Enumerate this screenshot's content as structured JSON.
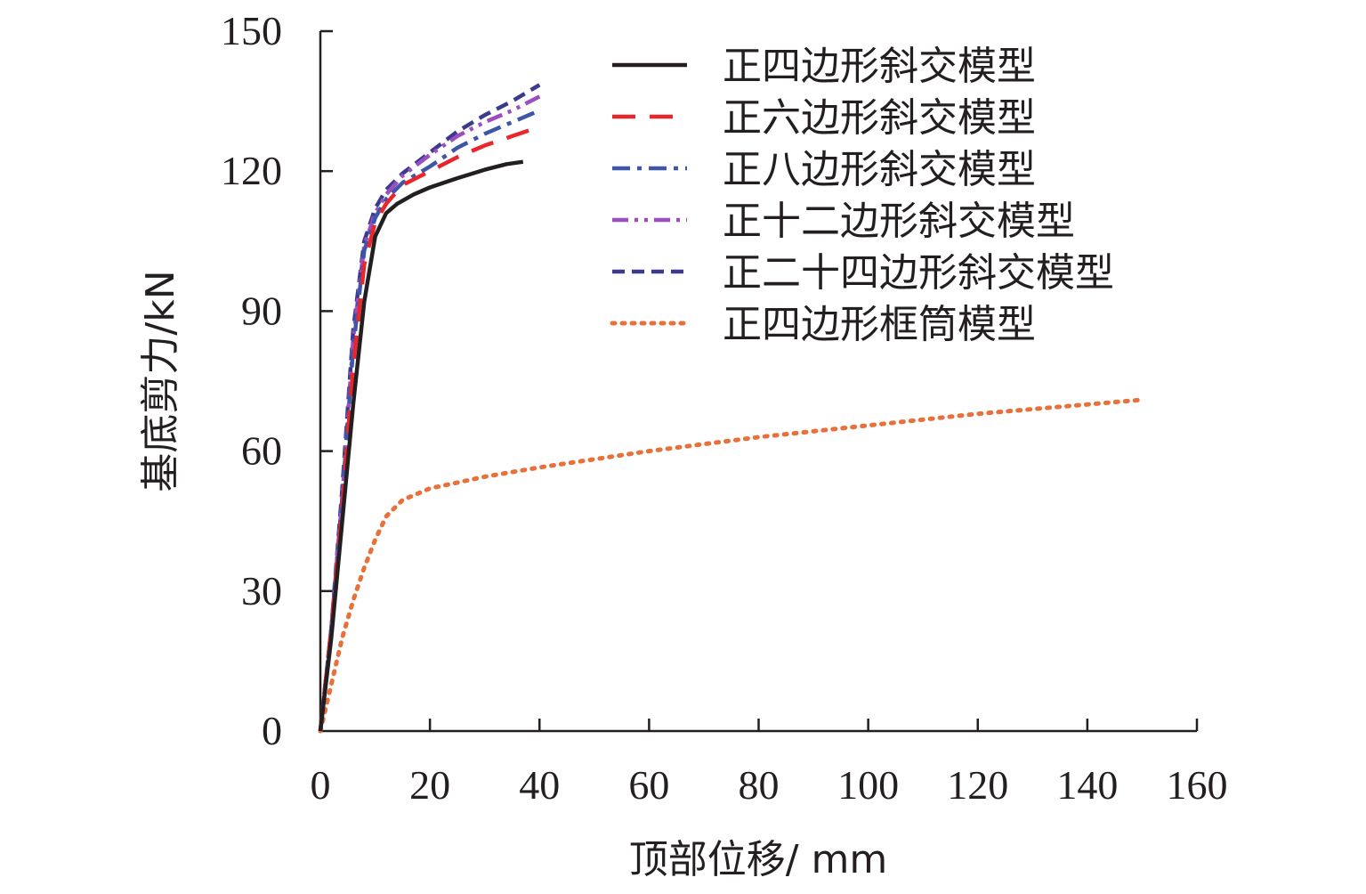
{
  "chart_data": {
    "type": "line",
    "xlabel": "顶部位移/ mm",
    "ylabel": "基底剪力/kN",
    "xlim": [
      0,
      160
    ],
    "ylim": [
      0,
      150
    ],
    "x_ticks": [
      0,
      20,
      40,
      60,
      80,
      100,
      120,
      140,
      160
    ],
    "y_ticks": [
      0,
      30,
      60,
      90,
      120,
      150
    ],
    "grid": false,
    "legend_position": "top-right",
    "series": [
      {
        "name": "正四边形斜交模型",
        "color": "#231f20",
        "dash": "solid",
        "points": [
          [
            0,
            0
          ],
          [
            2,
            20
          ],
          [
            4,
            45
          ],
          [
            6,
            70
          ],
          [
            8,
            92
          ],
          [
            10,
            106
          ],
          [
            12,
            111
          ],
          [
            14,
            113
          ],
          [
            17,
            115
          ],
          [
            20,
            116.5
          ],
          [
            25,
            118.5
          ],
          [
            30,
            120.3
          ],
          [
            34,
            121.5
          ],
          [
            37,
            122
          ]
        ]
      },
      {
        "name": "正六边形斜交模型",
        "color": "#e8262c",
        "dash": "long-dash",
        "points": [
          [
            0,
            0
          ],
          [
            2,
            22
          ],
          [
            4,
            48
          ],
          [
            6,
            78
          ],
          [
            8,
            100
          ],
          [
            10,
            109
          ],
          [
            12,
            113
          ],
          [
            15,
            117
          ],
          [
            20,
            120
          ],
          [
            25,
            123
          ],
          [
            30,
            125.5
          ],
          [
            35,
            127.5
          ],
          [
            40,
            129.5
          ]
        ]
      },
      {
        "name": "正八边形斜交模型",
        "color": "#3d56a8",
        "dash": "dash-dot",
        "points": [
          [
            0,
            0
          ],
          [
            2,
            22
          ],
          [
            4,
            50
          ],
          [
            6,
            82
          ],
          [
            8,
            103
          ],
          [
            10,
            110
          ],
          [
            12,
            114
          ],
          [
            15,
            117.5
          ],
          [
            20,
            121
          ],
          [
            25,
            125
          ],
          [
            30,
            128
          ],
          [
            35,
            130.5
          ],
          [
            40,
            133
          ]
        ]
      },
      {
        "name": "正十二边形斜交模型",
        "color": "#9b4fbf",
        "dash": "dash-dot-dot",
        "points": [
          [
            0,
            0
          ],
          [
            2,
            22
          ],
          [
            4,
            50
          ],
          [
            6,
            84
          ],
          [
            8,
            104
          ],
          [
            10,
            111
          ],
          [
            12,
            115
          ],
          [
            15,
            119
          ],
          [
            20,
            123.5
          ],
          [
            25,
            127.5
          ],
          [
            30,
            130.5
          ],
          [
            35,
            133
          ],
          [
            40,
            136
          ]
        ]
      },
      {
        "name": "正二十四边形斜交模型",
        "color": "#3c3a8f",
        "dash": "short-dash",
        "points": [
          [
            0,
            0
          ],
          [
            2,
            22
          ],
          [
            4,
            52
          ],
          [
            6,
            86
          ],
          [
            8,
            105
          ],
          [
            10,
            112
          ],
          [
            12,
            116
          ],
          [
            15,
            119.5
          ],
          [
            20,
            124
          ],
          [
            25,
            128.5
          ],
          [
            30,
            132
          ],
          [
            35,
            135
          ],
          [
            40,
            138.5
          ]
        ]
      },
      {
        "name": "正四边形框筒模型",
        "color": "#e8703a",
        "dash": "dotted",
        "points": [
          [
            0,
            0
          ],
          [
            2,
            10
          ],
          [
            4,
            20
          ],
          [
            6,
            28
          ],
          [
            8,
            35
          ],
          [
            10,
            41
          ],
          [
            12,
            46
          ],
          [
            15,
            49.5
          ],
          [
            20,
            52
          ],
          [
            30,
            54.5
          ],
          [
            40,
            56.5
          ],
          [
            60,
            60
          ],
          [
            80,
            63
          ],
          [
            100,
            65.5
          ],
          [
            120,
            68
          ],
          [
            140,
            70
          ],
          [
            150,
            71
          ]
        ]
      }
    ]
  }
}
